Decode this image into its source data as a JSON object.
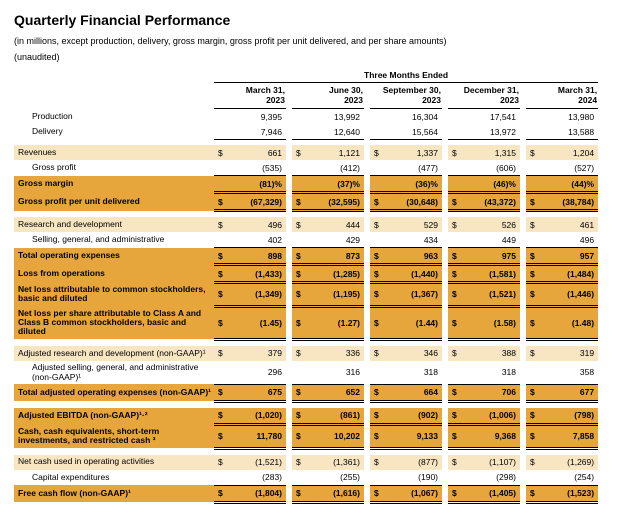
{
  "title": "Quarterly Financial Performance",
  "subtitle": "(in millions, except production, delivery, gross margin, gross profit per unit delivered, and per share amounts)",
  "unaudited": "(unaudited)",
  "super_header": "Three Months Ended",
  "columns": [
    {
      "line1": "March 31,",
      "line2": "2023"
    },
    {
      "line1": "June 30,",
      "line2": "2023"
    },
    {
      "line1": "September 30,",
      "line2": "2023"
    },
    {
      "line1": "December 31,",
      "line2": "2023"
    },
    {
      "line1": "March 31,",
      "line2": "2024"
    }
  ],
  "rows": [
    {
      "label": "Production",
      "indent": true,
      "cur": "",
      "vals": [
        "9,395",
        "13,992",
        "16,304",
        "17,541",
        "13,980"
      ],
      "style": "plain"
    },
    {
      "label": "Delivery",
      "indent": true,
      "cur": "",
      "vals": [
        "7,946",
        "12,640",
        "15,564",
        "13,972",
        "13,588"
      ],
      "style": "plain underline"
    },
    {
      "spacer": true
    },
    {
      "label": "Revenues",
      "indent": true,
      "cur": "$",
      "vals": [
        "661",
        "1,121",
        "1,337",
        "1,315",
        "1,204"
      ],
      "style": "light"
    },
    {
      "label": "Gross profit",
      "indent": true,
      "cur": "",
      "vals": [
        "(535)",
        "(412)",
        "(477)",
        "(606)",
        "(527)"
      ],
      "style": "plain underline"
    },
    {
      "label": "Gross margin",
      "cur": "",
      "vals": [
        "(81)%",
        "(37)%",
        "(36)%",
        "(46)%",
        "(44)%"
      ],
      "style": "hl bold dblunder"
    },
    {
      "label": "Gross profit per unit delivered",
      "cur": "$",
      "vals": [
        "(67,329)",
        "(32,595)",
        "(30,648)",
        "(43,372)",
        "(38,784)"
      ],
      "style": "hl bold dblunder"
    },
    {
      "spacer": true
    },
    {
      "label": "Research and development",
      "indent": true,
      "cur": "$",
      "vals": [
        "496",
        "444",
        "529",
        "526",
        "461"
      ],
      "style": "light"
    },
    {
      "label": "Selling, general, and administrative",
      "indent": true,
      "cur": "",
      "vals": [
        "402",
        "429",
        "434",
        "449",
        "496"
      ],
      "style": "plain underline"
    },
    {
      "label": "Total operating expenses",
      "cur": "$",
      "vals": [
        "898",
        "873",
        "963",
        "975",
        "957"
      ],
      "style": "hl bold dblunder"
    },
    {
      "label": "Loss from operations",
      "cur": "$",
      "vals": [
        "(1,433)",
        "(1,285)",
        "(1,440)",
        "(1,581)",
        "(1,484)"
      ],
      "style": "hl bold dblunder"
    },
    {
      "label": "Net loss attributable to common stockholders, basic and diluted",
      "cur": "$",
      "vals": [
        "(1,349)",
        "(1,195)",
        "(1,367)",
        "(1,521)",
        "(1,446)"
      ],
      "style": "hl bold dblunder"
    },
    {
      "label": "Net loss per share attributable to Class A and Class B common stockholders, basic and diluted",
      "cur": "$",
      "vals": [
        "(1.45)",
        "(1.27)",
        "(1.44)",
        "(1.58)",
        "(1.48)"
      ],
      "style": "hl bold dblunder"
    },
    {
      "spacer": true
    },
    {
      "label": "Adjusted research and development (non-GAAP)¹",
      "indent": true,
      "cur": "$",
      "vals": [
        "379",
        "336",
        "346",
        "388",
        "319"
      ],
      "style": "light"
    },
    {
      "label": "Adjusted selling, general, and administrative (non-GAAP)¹",
      "indent": true,
      "cur": "",
      "vals": [
        "296",
        "316",
        "318",
        "318",
        "358"
      ],
      "style": "plain underline"
    },
    {
      "label": "Total adjusted operating expenses (non-GAAP)¹",
      "cur": "$",
      "vals": [
        "675",
        "652",
        "664",
        "706",
        "677"
      ],
      "style": "hl bold dblunder"
    },
    {
      "spacer": true
    },
    {
      "label": "Adjusted EBITDA (non-GAAP)¹·²",
      "cur": "$",
      "vals": [
        "(1,020)",
        "(861)",
        "(902)",
        "(1,006)",
        "(798)"
      ],
      "style": "hl bold dblunder"
    },
    {
      "label": "Cash, cash equivalents, short-term investments, and restricted cash ³",
      "cur": "$",
      "vals": [
        "11,780",
        "10,202",
        "9,133",
        "9,368",
        "7,858"
      ],
      "style": "hl bold dblunder"
    },
    {
      "spacer": true
    },
    {
      "label": "Net cash used in operating activities",
      "indent": true,
      "cur": "$",
      "vals": [
        "(1,521)",
        "(1,361)",
        "(877)",
        "(1,107)",
        "(1,269)"
      ],
      "style": "light"
    },
    {
      "label": "Capital expenditures",
      "indent": true,
      "cur": "",
      "vals": [
        "(283)",
        "(255)",
        "(190)",
        "(298)",
        "(254)"
      ],
      "style": "plain underline"
    },
    {
      "label": "Free cash flow (non-GAAP)¹",
      "cur": "$",
      "vals": [
        "(1,804)",
        "(1,616)",
        "(1,067)",
        "(1,405)",
        "(1,523)"
      ],
      "style": "hl bold dblunder"
    }
  ],
  "colors": {
    "highlight": "#e7a63c",
    "highlight_light": "#f8e5c1",
    "text": "#000000",
    "background": "#ffffff"
  }
}
